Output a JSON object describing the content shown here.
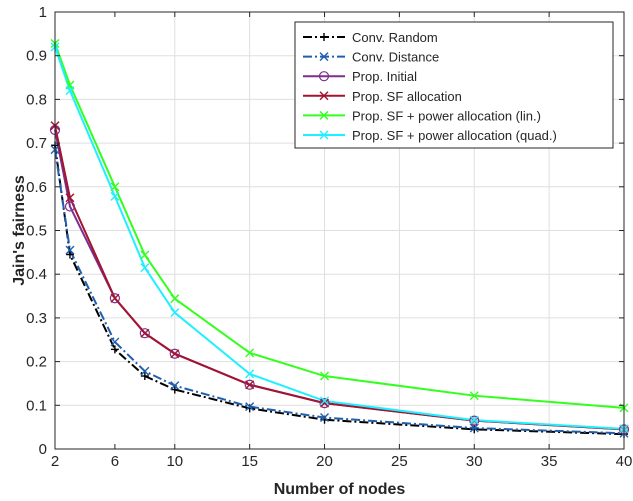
{
  "chart_data": {
    "type": "line",
    "title": "",
    "xlabel": "Number of nodes",
    "ylabel": "Jain's fairness",
    "xlim": [
      2,
      40
    ],
    "ylim": [
      0,
      1
    ],
    "x": [
      2,
      3,
      6,
      8,
      10,
      15,
      20,
      30,
      40
    ],
    "x_ticks": [
      10,
      15,
      20,
      25,
      30,
      35,
      40
    ],
    "x_tick_labels": [
      "10",
      "15",
      "20",
      "25",
      "30",
      "35",
      "40"
    ],
    "x_ticks_extra": [
      2,
      6
    ],
    "x_ticks_extra_labels": [
      "2",
      "6"
    ],
    "y_ticks": [
      0,
      0.1,
      0.2,
      0.3,
      0.4,
      0.5,
      0.6,
      0.7,
      0.8,
      0.9,
      1
    ],
    "y_tick_labels": [
      "0",
      "0.1",
      "0.2",
      "0.3",
      "0.4",
      "0.5",
      "0.6",
      "0.7",
      "0.8",
      "0.9",
      "1"
    ],
    "grid": true,
    "legend_position": "top-right",
    "series": [
      {
        "name": "Conv. Random",
        "color": "#000000",
        "dash": "dashdot",
        "marker": "plus",
        "values": [
          0.695,
          0.445,
          0.228,
          0.167,
          0.136,
          0.093,
          0.067,
          0.045,
          0.034
        ]
      },
      {
        "name": "Conv. Distance",
        "color": "#1f5fae",
        "dash": "dashdot",
        "marker": "x",
        "values": [
          0.685,
          0.455,
          0.245,
          0.178,
          0.145,
          0.097,
          0.072,
          0.048,
          0.036
        ]
      },
      {
        "name": "Prop. Initial",
        "color": "#7e2f8e",
        "dash": "solid",
        "marker": "circle",
        "values": [
          0.73,
          0.555,
          0.345,
          0.265,
          0.218,
          0.147,
          0.105,
          0.065,
          0.045
        ]
      },
      {
        "name": "Prop. SF allocation",
        "color": "#a2142f",
        "dash": "solid",
        "marker": "x",
        "values": [
          0.74,
          0.575,
          0.345,
          0.265,
          0.218,
          0.147,
          0.105,
          0.065,
          0.045
        ]
      },
      {
        "name": "Prop. SF + power allocation (lin.)",
        "color": "#33ff1e",
        "dash": "solid",
        "marker": "x",
        "values": [
          0.928,
          0.833,
          0.6,
          0.444,
          0.344,
          0.22,
          0.167,
          0.122,
          0.094
        ]
      },
      {
        "name": "Prop. SF + power allocation (quad.)",
        "color": "#1ff0ff",
        "dash": "solid",
        "marker": "x",
        "values": [
          0.92,
          0.82,
          0.578,
          0.415,
          0.312,
          0.172,
          0.11,
          0.066,
          0.046
        ]
      }
    ]
  }
}
